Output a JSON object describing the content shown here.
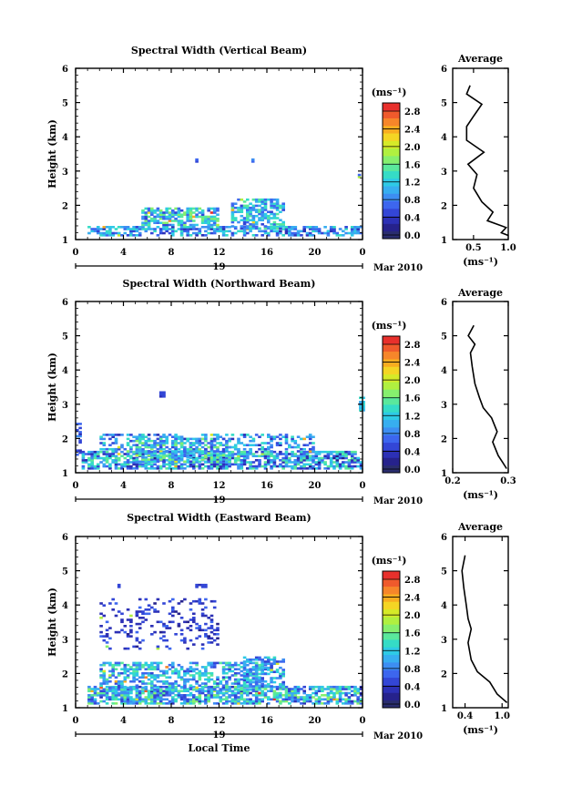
{
  "chart_data": {
    "type": "heatmap",
    "date_label": "Mar 2010",
    "day_label": "19",
    "xlabel_bottom": "Local Time",
    "time_ticks": [
      0,
      4,
      8,
      12,
      16,
      20,
      0
    ],
    "height_ticks": [
      1,
      2,
      3,
      4,
      5,
      6
    ],
    "colorbar": {
      "unit": "(ms⁻¹)",
      "ticks": [
        "2.8",
        "2.4",
        "2.0",
        "1.6",
        "1.2",
        "0.8",
        "0.4",
        "0.0"
      ],
      "colors": [
        "#2a2d6e",
        "#26228c",
        "#2c30b5",
        "#3346d6",
        "#3d66ee",
        "#3d8ef2",
        "#37aef0",
        "#2ecae6",
        "#35dcc6",
        "#5ae89c",
        "#86ef6e",
        "#b0f040",
        "#d6ea28",
        "#f4d524",
        "#f8ad20",
        "#f6862a",
        "#ef5a2c",
        "#e8302c"
      ]
    },
    "panels": [
      {
        "title": "Spectral Width (Vertical Beam)",
        "ylabel": "Height (km)",
        "avg_title": "Average",
        "avg_xlabel": "(ms⁻¹)",
        "avg_xlim": [
          0.2,
          1.0
        ],
        "avg_xticks": [
          {
            "v": 0.5,
            "l": "0.5"
          },
          {
            "v": 1.0,
            "l": "1.0"
          }
        ],
        "avg_profile": [
          [
            1.0,
            1.12
          ],
          [
            0.9,
            1.2
          ],
          [
            0.97,
            1.35
          ],
          [
            0.7,
            1.55
          ],
          [
            0.78,
            1.8
          ],
          [
            0.62,
            2.1
          ],
          [
            0.5,
            2.5
          ],
          [
            0.55,
            2.9
          ],
          [
            0.42,
            3.2
          ],
          [
            0.65,
            3.55
          ],
          [
            0.4,
            3.9
          ],
          [
            0.4,
            4.3
          ],
          [
            0.5,
            4.6
          ],
          [
            0.62,
            4.95
          ],
          [
            0.4,
            5.25
          ],
          [
            0.45,
            5.5
          ]
        ]
      },
      {
        "title": "Spectral Width (Northward Beam)",
        "ylabel": "Height (km)",
        "avg_title": "Average",
        "avg_xlabel": "(ms⁻¹)",
        "avg_xlim": [
          0.2,
          0.3
        ],
        "avg_xticks": [
          {
            "v": 0.2,
            "l": "0.2"
          },
          {
            "v": 0.3,
            "l": "0.3"
          }
        ],
        "avg_profile": [
          [
            0.297,
            1.12
          ],
          [
            0.29,
            1.3
          ],
          [
            0.282,
            1.5
          ],
          [
            0.272,
            1.9
          ],
          [
            0.28,
            2.2
          ],
          [
            0.27,
            2.6
          ],
          [
            0.255,
            2.9
          ],
          [
            0.248,
            3.2
          ],
          [
            0.24,
            3.6
          ],
          [
            0.235,
            4.1
          ],
          [
            0.232,
            4.5
          ],
          [
            0.24,
            4.75
          ],
          [
            0.228,
            5.0
          ],
          [
            0.238,
            5.3
          ]
        ]
      },
      {
        "title": "Spectral Width (Eastward Beam)",
        "ylabel": "Height (km)",
        "avg_title": "Average",
        "avg_xlabel": "(ms⁻¹)",
        "avg_xlim": [
          0.2,
          1.1
        ],
        "avg_xticks": [
          {
            "v": 0.4,
            "l": "0.4"
          },
          {
            "v": 1.0,
            "l": "1.0"
          }
        ],
        "avg_profile": [
          [
            1.08,
            1.15
          ],
          [
            0.92,
            1.4
          ],
          [
            0.8,
            1.75
          ],
          [
            0.6,
            2.05
          ],
          [
            0.5,
            2.4
          ],
          [
            0.45,
            2.9
          ],
          [
            0.5,
            3.3
          ],
          [
            0.45,
            3.6
          ],
          [
            0.42,
            4.0
          ],
          [
            0.38,
            4.5
          ],
          [
            0.35,
            5.0
          ],
          [
            0.4,
            5.45
          ]
        ]
      }
    ]
  }
}
